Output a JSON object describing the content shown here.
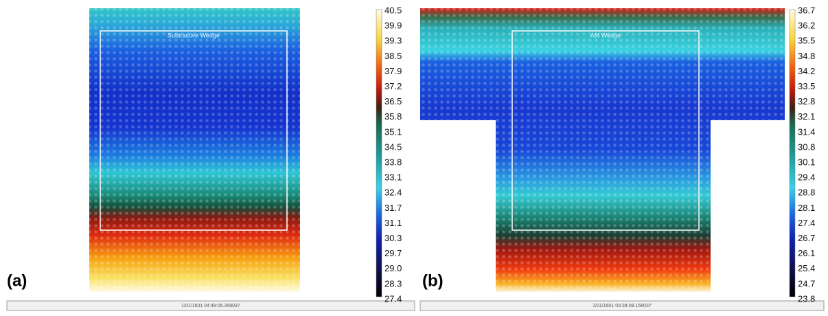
{
  "panels": [
    {
      "label": "(a)",
      "overlay_text": "Subtractive Wedge",
      "timestamp": "1/01/1601 04:48:06.358037",
      "colorbar_labels": [
        "40.5",
        "39.9",
        "39.3",
        "38.5",
        "37.9",
        "37.2",
        "36.5",
        "35.8",
        "35.1",
        "34.5",
        "33.8",
        "33.1",
        "32.4",
        "31.7",
        "31.1",
        "30.3",
        "29.7",
        "29.0",
        "28.3",
        "27.4"
      ]
    },
    {
      "label": "(b)",
      "overlay_text": "AM Wedge",
      "timestamp": "1/01/1601 03:34:08.158037",
      "colorbar_labels": [
        "36.7",
        "36.2",
        "35.5",
        "34.8",
        "34.2",
        "33.5",
        "32.8",
        "32.1",
        "31.4",
        "30.8",
        "30.1",
        "29.4",
        "28.8",
        "28.1",
        "27.4",
        "26.7",
        "26.1",
        "25.4",
        "24.7",
        "23.8"
      ]
    }
  ]
}
